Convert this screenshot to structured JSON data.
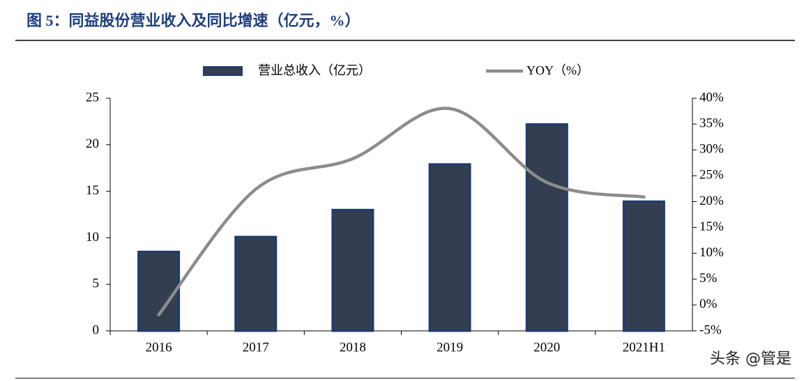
{
  "chart_data": {
    "type": "bar_line",
    "title": "图 5：同益股份营业收入及同比增速（亿元，%）",
    "categories": [
      "2016",
      "2017",
      "2018",
      "2019",
      "2020",
      "2021H1"
    ],
    "series": [
      {
        "name": "营业总收入（亿元）",
        "type": "bar",
        "color": "#333f50",
        "values": [
          8.5,
          10.1,
          13.0,
          17.9,
          22.2,
          13.9
        ]
      },
      {
        "name": "YOY（%）",
        "type": "line",
        "axis": "y2",
        "color": "#8c8c8c",
        "values": [
          -1.9,
          22.4,
          28.3,
          38.0,
          23.7,
          20.9
        ]
      }
    ],
    "ylim": [
      0,
      25
    ],
    "yticks": [
      0,
      5,
      10,
      15,
      20,
      25
    ],
    "y2lim": [
      -5,
      40
    ],
    "y2ticks": [
      {
        "value": -5,
        "label": "-5%"
      },
      {
        "value": 0,
        "label": "0%"
      },
      {
        "value": 5,
        "label": "5%"
      },
      {
        "value": 10,
        "label": "10%"
      },
      {
        "value": 15,
        "label": "15%"
      },
      {
        "value": 20,
        "label": "20%"
      },
      {
        "value": 25,
        "label": "25%"
      },
      {
        "value": 30,
        "label": "30%"
      },
      {
        "value": 35,
        "label": "35%"
      },
      {
        "value": 40,
        "label": "40%"
      }
    ],
    "watermark": "头条 @管是"
  }
}
